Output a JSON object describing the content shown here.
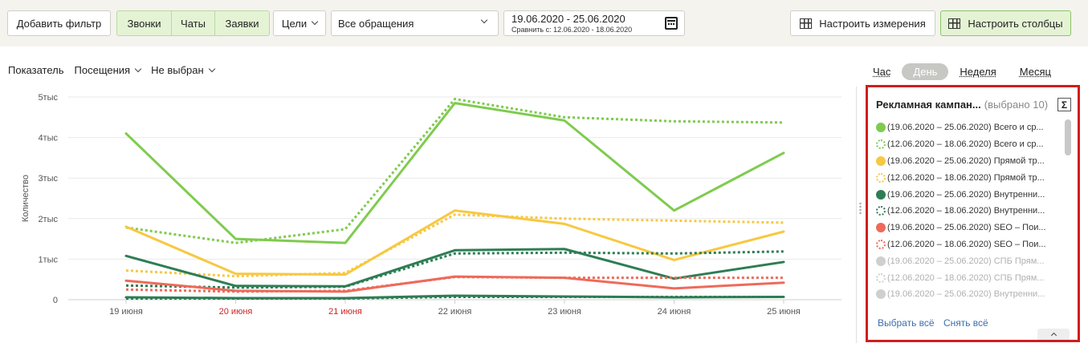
{
  "toolbar": {
    "add_filter": "Добавить фильтр",
    "segments": [
      "Звонки",
      "Чаты",
      "Заявки"
    ],
    "goals": "Цели",
    "requests_select": "Все обращения",
    "date_range": "19.06.2020 - 25.06.2020",
    "compare_range": "Сравнить с: 12.06.2020 - 18.06.2020",
    "configure_dimensions": "Настроить измерения",
    "configure_columns": "Настроить столбцы"
  },
  "metric_bar": {
    "label": "Показатель",
    "metric": "Посещения",
    "second_metric": "Не выбран"
  },
  "period_tabs": {
    "hour": "Час",
    "day": "День",
    "week": "Неделя",
    "month": "Месяц",
    "active": "day"
  },
  "legend_panel": {
    "title": "Рекламная кампан...",
    "selected": "(выбрано 10)",
    "sigma": "Σ",
    "items": [
      {
        "text": "(19.06.2020 – 25.06.2020) Всего и ср...",
        "color": "#7fcb4f",
        "dashed": false,
        "dim": false
      },
      {
        "text": "(12.06.2020 – 18.06.2020) Всего и ср...",
        "color": "#7fcb4f",
        "dashed": true,
        "dim": false
      },
      {
        "text": "(19.06.2020 – 25.06.2020) Прямой тр...",
        "color": "#f7c842",
        "dashed": false,
        "dim": false
      },
      {
        "text": "(12.06.2020 – 18.06.2020) Прямой тр...",
        "color": "#f7c842",
        "dashed": true,
        "dim": false
      },
      {
        "text": "(19.06.2020 – 25.06.2020) Внутренни...",
        "color": "#2e7d55",
        "dashed": false,
        "dim": false
      },
      {
        "text": "(12.06.2020 – 18.06.2020) Внутренни...",
        "color": "#2e7d55",
        "dashed": true,
        "dim": false
      },
      {
        "text": "(19.06.2020 – 25.06.2020) SEO – Пои...",
        "color": "#ee6a5a",
        "dashed": false,
        "dim": false
      },
      {
        "text": "(12.06.2020 – 18.06.2020) SEO – Пои...",
        "color": "#ee6a5a",
        "dashed": true,
        "dim": false
      },
      {
        "text": "(19.06.2020 – 25.06.2020) СПБ Прям...",
        "color": "#cfcfcf",
        "dashed": false,
        "dim": true
      },
      {
        "text": "(12.06.2020 – 18.06.2020) СПБ Прям...",
        "color": "#cfcfcf",
        "dashed": true,
        "dim": true
      },
      {
        "text": "(19.06.2020 – 25.06.2020) Внутренни...",
        "color": "#cfcfcf",
        "dashed": false,
        "dim": true
      }
    ],
    "select_all": "Выбрать всё",
    "clear_all": "Снять всё"
  },
  "chart_data": {
    "type": "line",
    "ylabel": "Количество",
    "ylim": [
      0,
      5000
    ],
    "y_ticks": [
      "0",
      "1тыс",
      "2тыс",
      "3тыс",
      "4тыс",
      "5тыс"
    ],
    "categories": [
      "19 июня",
      "20 июня",
      "21 июня",
      "22 июня",
      "23 июня",
      "24 июня",
      "25 июня"
    ],
    "weekend_categories": [
      "20 июня",
      "21 июня"
    ],
    "weekend_color": "#cc2222",
    "grid": true,
    "series": [
      {
        "color": "#7fcb4f",
        "dashed": false,
        "values": [
          4100,
          1500,
          1400,
          4850,
          4420,
          2200,
          3620
        ]
      },
      {
        "color": "#7fcb4f",
        "dashed": true,
        "values": [
          1780,
          1400,
          1740,
          4950,
          4500,
          4400,
          4370
        ]
      },
      {
        "color": "#f7c842",
        "dashed": false,
        "values": [
          1800,
          640,
          620,
          2200,
          1870,
          980,
          1680
        ]
      },
      {
        "color": "#f7c842",
        "dashed": true,
        "values": [
          720,
          580,
          660,
          2100,
          2000,
          1950,
          1900
        ]
      },
      {
        "color": "#2e7d55",
        "dashed": false,
        "values": [
          1080,
          340,
          330,
          1220,
          1250,
          520,
          930
        ]
      },
      {
        "color": "#2e7d55",
        "dashed": true,
        "values": [
          350,
          300,
          320,
          1140,
          1160,
          1140,
          1190
        ]
      },
      {
        "color": "#ee6a5a",
        "dashed": false,
        "values": [
          470,
          220,
          200,
          570,
          540,
          280,
          420
        ]
      },
      {
        "color": "#ee6a5a",
        "dashed": true,
        "values": [
          250,
          200,
          220,
          560,
          540,
          540,
          540
        ]
      },
      {
        "color": "#2e7d55",
        "dashed": false,
        "values": [
          60,
          40,
          40,
          100,
          80,
          60,
          70
        ]
      },
      {
        "color": "#2e7d55",
        "dashed": true,
        "values": [
          30,
          30,
          30,
          70,
          70,
          70,
          70
        ]
      }
    ]
  }
}
